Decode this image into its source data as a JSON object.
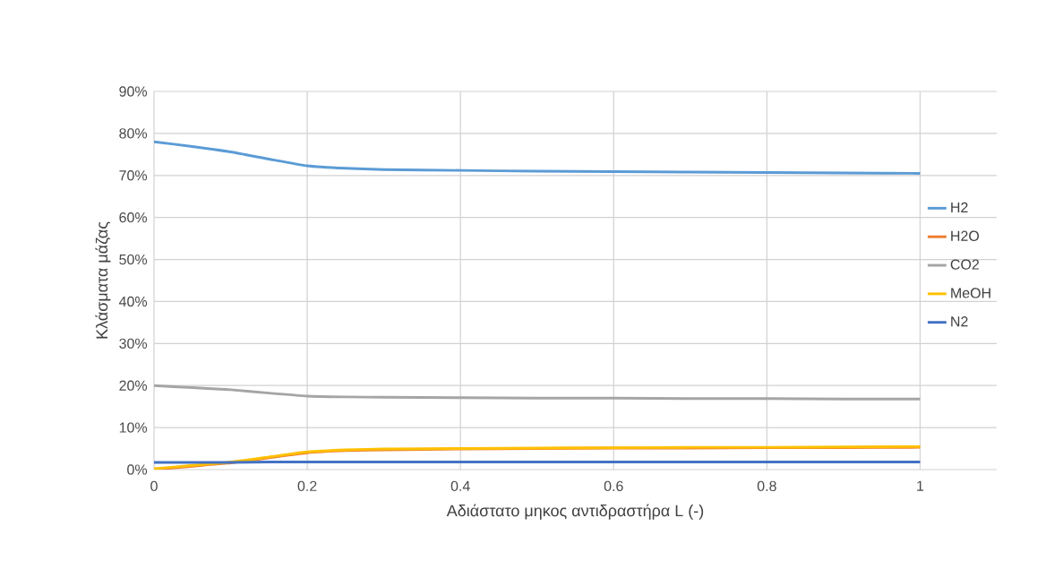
{
  "chart_data": {
    "type": "line",
    "xlabel": "Αδιάστατο μηκος αντιδραστήρα L (-)",
    "ylabel": "Κλάσματα μάζας",
    "x": [
      0,
      0.05,
      0.1,
      0.15,
      0.2,
      0.25,
      0.3,
      0.4,
      0.5,
      0.6,
      0.7,
      0.8,
      0.9,
      1
    ],
    "series": [
      {
        "name": "H2",
        "color": "#5b9bd5",
        "values": [
          78.0,
          76.9,
          75.6,
          73.9,
          72.3,
          71.7,
          71.4,
          71.2,
          71.0,
          70.9,
          70.8,
          70.7,
          70.6,
          70.5
        ]
      },
      {
        "name": "H2O",
        "color": "#ed7d31",
        "values": [
          0.0,
          0.8,
          1.6,
          2.8,
          4.0,
          4.5,
          4.7,
          4.9,
          5.0,
          5.1,
          5.1,
          5.2,
          5.2,
          5.3
        ]
      },
      {
        "name": "CO2",
        "color": "#a5a5a5",
        "values": [
          20.0,
          19.5,
          19.0,
          18.2,
          17.5,
          17.3,
          17.2,
          17.1,
          17.0,
          17.0,
          16.9,
          16.9,
          16.8,
          16.8
        ]
      },
      {
        "name": "MeOH",
        "color": "#ffc000",
        "values": [
          0.2,
          1.0,
          1.8,
          3.0,
          4.2,
          4.7,
          4.9,
          5.0,
          5.1,
          5.2,
          5.3,
          5.3,
          5.4,
          5.5
        ]
      },
      {
        "name": "N2",
        "color": "#4472c4",
        "values": [
          1.7,
          1.7,
          1.7,
          1.8,
          1.8,
          1.8,
          1.8,
          1.8,
          1.8,
          1.8,
          1.8,
          1.8,
          1.8,
          1.8
        ]
      }
    ],
    "xlim": [
      0,
      1.1
    ],
    "xticks": [
      0,
      0.2,
      0.4,
      0.6,
      0.8,
      1
    ],
    "ylim": [
      0,
      90
    ],
    "yticks": [
      {
        "value": 0,
        "label": "0%"
      },
      {
        "value": 10,
        "label": "10%"
      },
      {
        "value": 20,
        "label": "20%"
      },
      {
        "value": 30,
        "label": "30%"
      },
      {
        "value": 40,
        "label": "40%"
      },
      {
        "value": 50,
        "label": "50%"
      },
      {
        "value": 60,
        "label": "60%"
      },
      {
        "value": 70,
        "label": "70%"
      },
      {
        "value": 80,
        "label": "80%"
      },
      {
        "value": 90,
        "label": "90%"
      }
    ],
    "grid": true,
    "legend": "right",
    "marker": "none",
    "line_style": "solid"
  }
}
